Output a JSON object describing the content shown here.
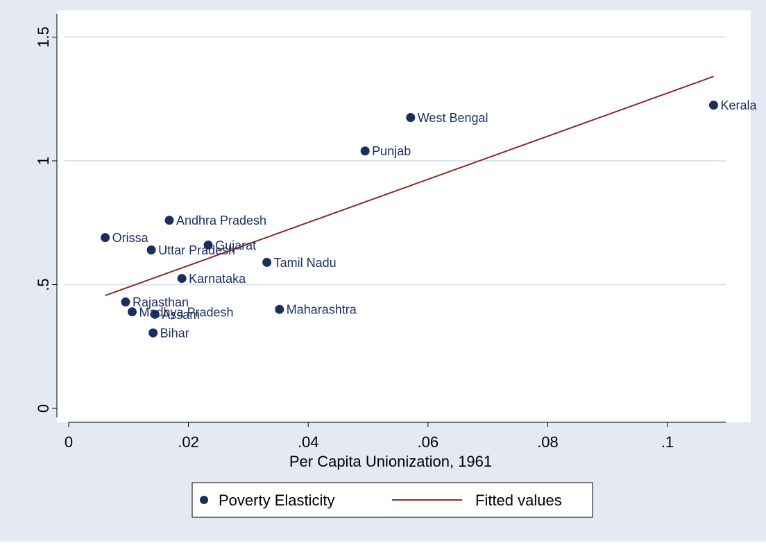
{
  "chart_data": {
    "type": "scatter",
    "title": "",
    "xlabel": "Per Capita Unionization, 1961",
    "ylabel": "",
    "xlim": [
      0,
      0.11
    ],
    "ylim": [
      0,
      1.5
    ],
    "x_ticks": [
      {
        "value": 0,
        "label": "0"
      },
      {
        "value": 0.02,
        "label": ".02"
      },
      {
        "value": 0.04,
        "label": ".04"
      },
      {
        "value": 0.06,
        "label": ".06"
      },
      {
        "value": 0.08,
        "label": ".08"
      },
      {
        "value": 0.1,
        "label": ".1"
      }
    ],
    "y_ticks": [
      {
        "value": 0,
        "label": "0"
      },
      {
        "value": 0.5,
        "label": ".5"
      },
      {
        "value": 1,
        "label": "1"
      },
      {
        "value": 1.5,
        "label": "1.5"
      }
    ],
    "grid": "horizontal",
    "legend_position": "bottom",
    "series": [
      {
        "name": "Poverty Elasticity",
        "kind": "scatter",
        "color": "#1a2e5e",
        "points": [
          {
            "label": "Kerala",
            "x": 0.1077,
            "y": 1.225
          },
          {
            "label": "West Bengal",
            "x": 0.0571,
            "y": 1.175
          },
          {
            "label": "Punjab",
            "x": 0.0495,
            "y": 1.04
          },
          {
            "label": "Andhra Pradesh",
            "x": 0.0168,
            "y": 0.76
          },
          {
            "label": "Orissa",
            "x": 0.0061,
            "y": 0.69
          },
          {
            "label": "Uttar Pradesh",
            "x": 0.0138,
            "y": 0.64
          },
          {
            "label": "Gujarat",
            "x": 0.0233,
            "y": 0.66
          },
          {
            "label": "Tamil Nadu",
            "x": 0.0331,
            "y": 0.59
          },
          {
            "label": "Karnataka",
            "x": 0.0189,
            "y": 0.525
          },
          {
            "label": "Rajasthan",
            "x": 0.0095,
            "y": 0.43
          },
          {
            "label": "Madhya Pradesh",
            "x": 0.0106,
            "y": 0.39
          },
          {
            "label": "Assam",
            "x": 0.0144,
            "y": 0.38
          },
          {
            "label": "Maharashtra",
            "x": 0.0352,
            "y": 0.4
          },
          {
            "label": "Bihar",
            "x": 0.0141,
            "y": 0.305
          }
        ]
      },
      {
        "name": "Fitted values",
        "kind": "line",
        "color": "#8b2a2a",
        "points": [
          {
            "x": 0.0061,
            "y": 0.456
          },
          {
            "x": 0.1077,
            "y": 1.341
          }
        ]
      }
    ]
  }
}
